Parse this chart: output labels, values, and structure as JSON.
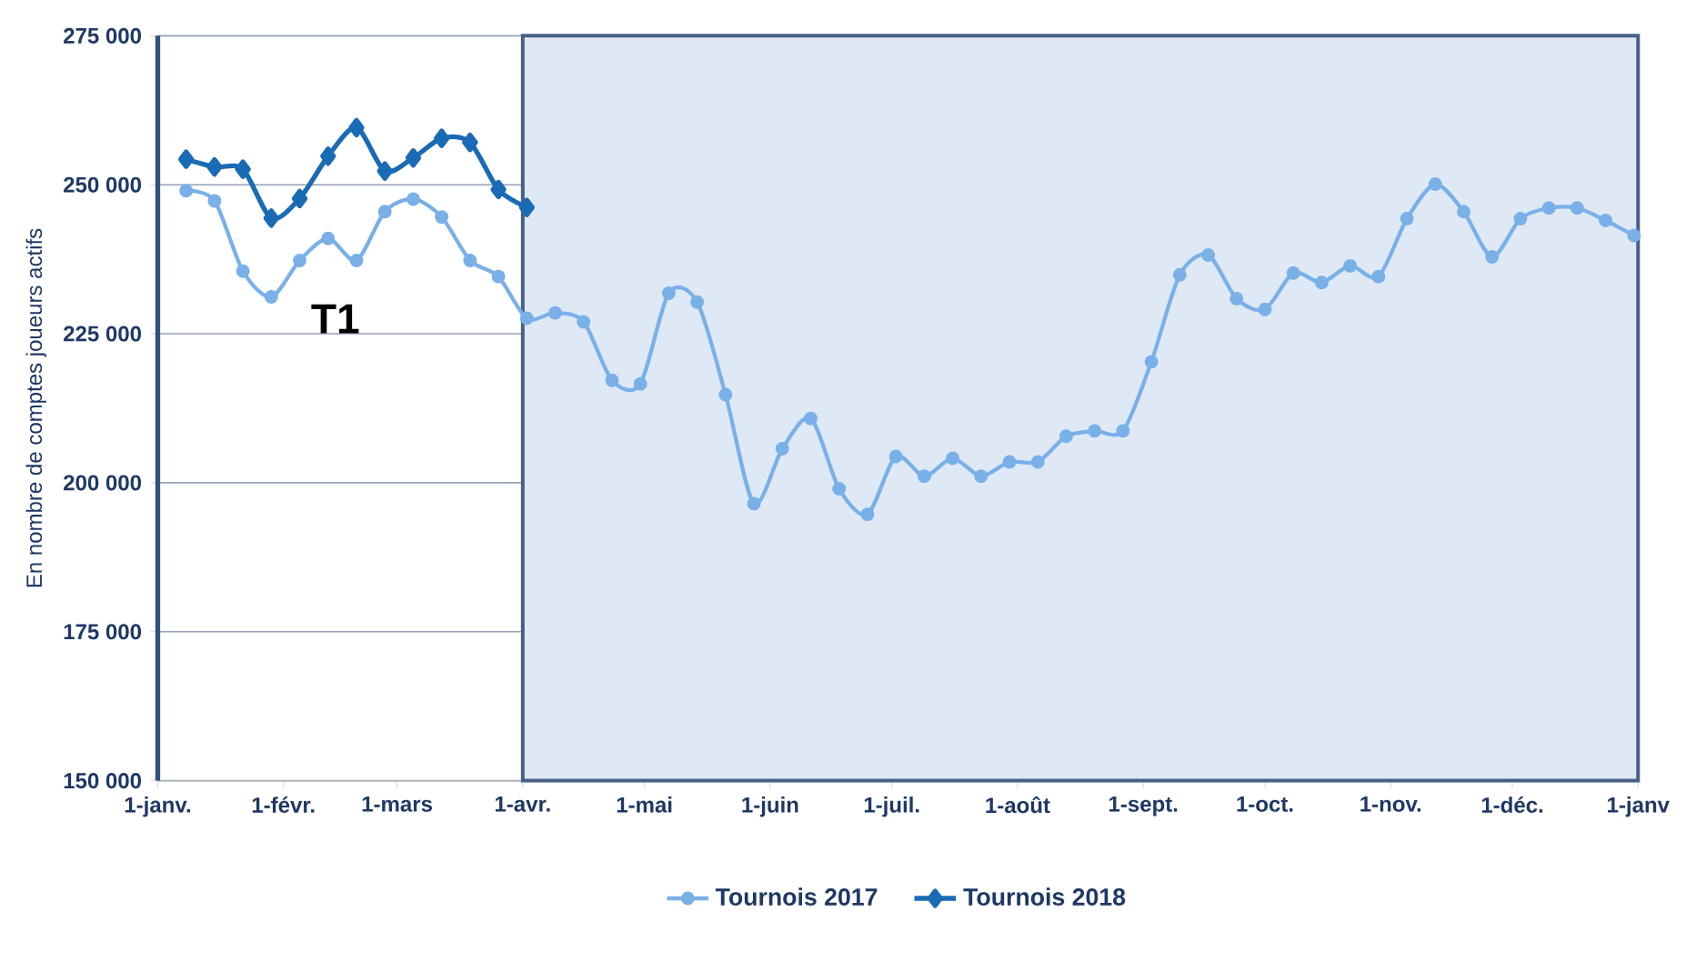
{
  "chart_data": {
    "type": "line",
    "ylabel": "En nombre de comptes joueurs actifs",
    "annotations": [
      "T1"
    ],
    "xlim": [
      "2017-01-01",
      "2018-01-01"
    ],
    "xticks": [
      {
        "value": "2017-01-01",
        "label": "1-janv."
      },
      {
        "value": "2017-02-01",
        "label": "1-févr."
      },
      {
        "value": "2017-03-01",
        "label": "1-mars"
      },
      {
        "value": "2017-04-01",
        "label": "1-avr."
      },
      {
        "value": "2017-05-01",
        "label": "1-mai"
      },
      {
        "value": "2017-06-01",
        "label": "1-juin"
      },
      {
        "value": "2017-07-01",
        "label": "1-juil."
      },
      {
        "value": "2017-08-01",
        "label": "1-août"
      },
      {
        "value": "2017-09-01",
        "label": "1-sept."
      },
      {
        "value": "2017-10-01",
        "label": "1-oct."
      },
      {
        "value": "2017-11-01",
        "label": "1-nov."
      },
      {
        "value": "2017-12-01",
        "label": "1-déc."
      },
      {
        "value": "2018-01-01",
        "label": "1-janv"
      }
    ],
    "ylim": [
      150000,
      275000
    ],
    "yticks": [
      {
        "value": 150000,
        "label": "150 000"
      },
      {
        "value": 175000,
        "label": "175 000"
      },
      {
        "value": 200000,
        "label": "200 000"
      },
      {
        "value": 225000,
        "label": "225 000"
      },
      {
        "value": 250000,
        "label": "250 000"
      },
      {
        "value": 275000,
        "label": "275 000"
      }
    ],
    "grid": "y",
    "legend": "bottom",
    "bands": [
      {
        "axis": "x",
        "from": "2017-04-01",
        "to": "2018-01-01",
        "color": "#dfe9f5"
      }
    ],
    "series": [
      {
        "name": "Tournois 2017",
        "color": "#7ab0e8",
        "marker": "circle",
        "x": [
          "2017-01-08",
          "2017-01-15",
          "2017-01-22",
          "2017-01-29",
          "2017-02-05",
          "2017-02-12",
          "2017-02-19",
          "2017-02-26",
          "2017-03-05",
          "2017-03-12",
          "2017-03-19",
          "2017-03-26",
          "2017-04-02",
          "2017-04-09",
          "2017-04-16",
          "2017-04-23",
          "2017-04-30",
          "2017-05-07",
          "2017-05-14",
          "2017-05-21",
          "2017-05-28",
          "2017-06-04",
          "2017-06-11",
          "2017-06-18",
          "2017-06-25",
          "2017-07-02",
          "2017-07-09",
          "2017-07-16",
          "2017-07-23",
          "2017-07-30",
          "2017-08-06",
          "2017-08-13",
          "2017-08-20",
          "2017-08-27",
          "2017-09-03",
          "2017-09-10",
          "2017-09-17",
          "2017-09-24",
          "2017-10-01",
          "2017-10-08",
          "2017-10-15",
          "2017-10-22",
          "2017-10-29",
          "2017-11-05",
          "2017-11-12",
          "2017-11-19",
          "2017-11-26",
          "2017-12-03",
          "2017-12-10",
          "2017-12-17",
          "2017-12-24",
          "2017-12-31"
        ],
        "values": [
          249000,
          247300,
          235500,
          231200,
          237300,
          241000,
          237300,
          245500,
          247600,
          244600,
          237300,
          234600,
          227600,
          228500,
          227000,
          217200,
          216600,
          231800,
          230300,
          214800,
          196500,
          205700,
          210800,
          199000,
          194700,
          204400,
          201100,
          204100,
          201100,
          203500,
          203500,
          207800,
          208700,
          208700,
          220300,
          234900,
          238200,
          230900,
          229100,
          235200,
          233600,
          236400,
          234600,
          244300,
          250100,
          245500,
          237900,
          244300,
          246100,
          246100,
          244000,
          241500
        ]
      },
      {
        "name": "Tournois 2018",
        "color": "#1a6bb5",
        "marker": "diamond",
        "x": [
          "2017-01-08",
          "2017-01-15",
          "2017-01-22",
          "2017-01-29",
          "2017-02-05",
          "2017-02-12",
          "2017-02-19",
          "2017-02-26",
          "2017-03-05",
          "2017-03-12",
          "2017-03-19",
          "2017-03-26",
          "2017-04-02"
        ],
        "values": [
          254300,
          253000,
          252600,
          244400,
          247700,
          254800,
          259600,
          252300,
          254500,
          257800,
          257100,
          249200,
          246200
        ]
      }
    ]
  }
}
